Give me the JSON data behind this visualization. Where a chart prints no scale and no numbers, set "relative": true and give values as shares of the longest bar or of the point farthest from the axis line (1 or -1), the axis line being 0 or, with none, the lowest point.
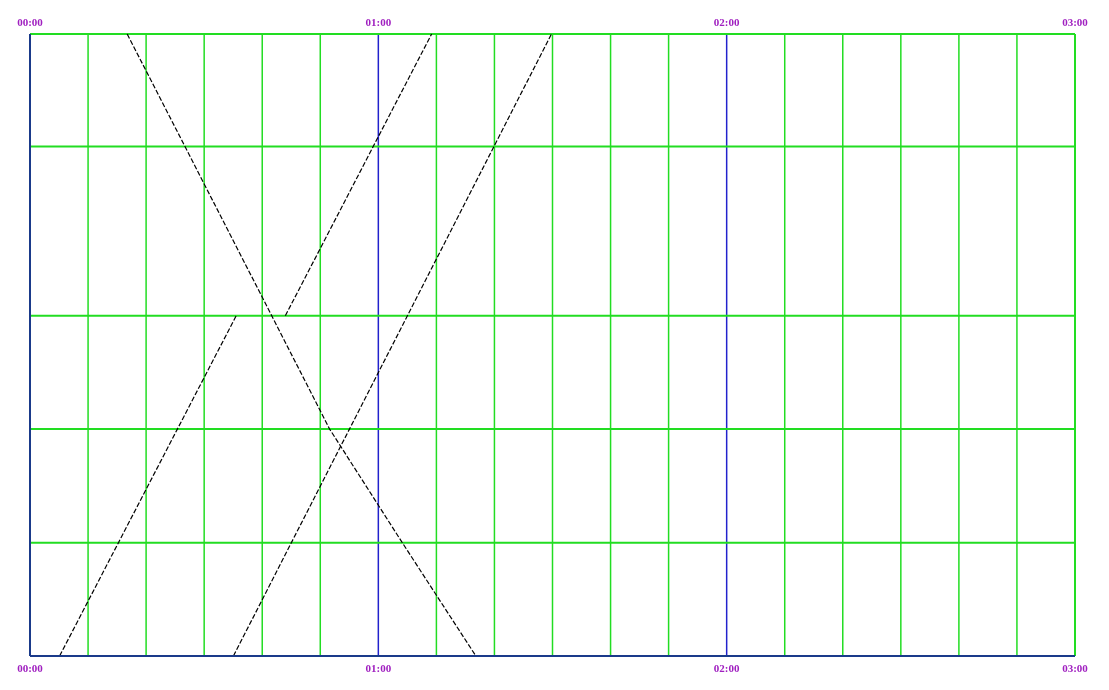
{
  "chart_data": {
    "type": "line",
    "relative": true,
    "line_style": "dashed",
    "marker": "none",
    "grid": "x",
    "legend": false,
    "xlim": [
      0,
      3
    ],
    "xticks": [
      {
        "value": 0,
        "label": "00:00"
      },
      {
        "value": 0.1667,
        "label": null
      },
      {
        "value": 0.3333,
        "label": null
      },
      {
        "value": 0.5,
        "label": null
      },
      {
        "value": 0.6667,
        "label": null
      },
      {
        "value": 0.8333,
        "label": null
      },
      {
        "value": 1,
        "label": "01:00"
      },
      {
        "value": 1.1667,
        "label": null
      },
      {
        "value": 1.3333,
        "label": null
      },
      {
        "value": 1.5,
        "label": null
      },
      {
        "value": 1.6667,
        "label": null
      },
      {
        "value": 1.8333,
        "label": null
      },
      {
        "value": 2,
        "label": "02:00"
      },
      {
        "value": 2.1667,
        "label": null
      },
      {
        "value": 2.3333,
        "label": null
      },
      {
        "value": 2.5,
        "label": null
      },
      {
        "value": 2.6667,
        "label": null
      },
      {
        "value": 2.8333,
        "label": null
      },
      {
        "value": 3,
        "label": "03:00"
      }
    ],
    "x2lim": [
      0,
      3
    ],
    "x2ticks": [
      {
        "value": 0,
        "label": "00:00"
      },
      {
        "value": 1,
        "label": "01:00"
      },
      {
        "value": 2,
        "label": "02:00"
      },
      {
        "value": 3,
        "label": "03:00"
      }
    ],
    "series": [
      {
        "color": "#000000",
        "x": [
          0.279,
          0.445,
          0.694,
          0.86,
          1.069,
          1.28
        ],
        "values": [
          1,
          0.819,
          0.547,
          0.365,
          0.182,
          0
        ]
      },
      {
        "color": "#000000",
        "x": [
          0.085,
          0.592,
          0.66,
          0.733,
          1.153
        ],
        "values": [
          0,
          0.547,
          null,
          0.547,
          1
        ]
      },
      {
        "color": "#000000",
        "x": [
          0.584,
          1.497
        ],
        "values": [
          0,
          1
        ]
      }
    ],
    "ref_lines": [
      {
        "axis": "y",
        "value": 1,
        "color": "#22dd22"
      },
      {
        "axis": "y",
        "value": 0.819,
        "color": "#22dd22"
      },
      {
        "axis": "y",
        "value": 0.547,
        "color": "#22dd22"
      },
      {
        "axis": "y",
        "value": 0.365,
        "color": "#22dd22"
      },
      {
        "axis": "y",
        "value": 0.182,
        "color": "#22dd22"
      }
    ]
  }
}
